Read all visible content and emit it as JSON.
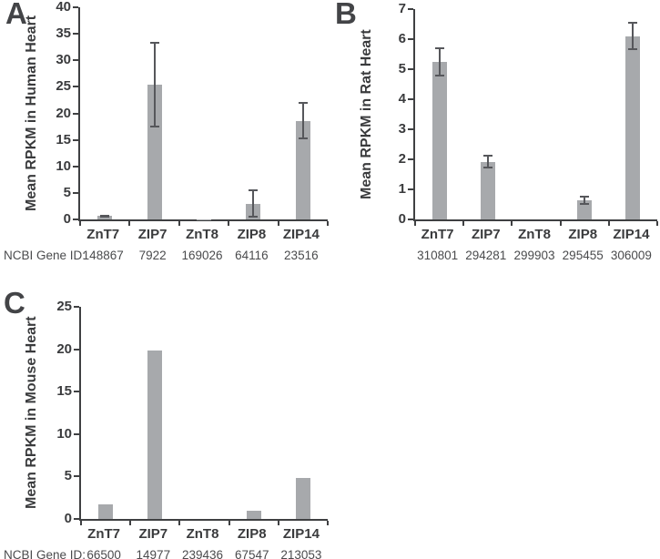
{
  "figure": {
    "bar_color": "#a7a9ac",
    "error_color": "#56575b",
    "axis_color": "#3f4042",
    "text_color": "#3a3b3d"
  },
  "gene_id_prefix": "NCBI Gene ID:",
  "chart_data": [
    {
      "panel": "A",
      "type": "bar",
      "ylabel": "Mean RPKM in Human Heart",
      "xlabel": "",
      "ylim": [
        0,
        40
      ],
      "ytick_step": 5,
      "grid": false,
      "categories": [
        "ZnT7",
        "ZIP7",
        "ZnT8",
        "ZIP8",
        "ZIP14"
      ],
      "values": [
        0.65,
        25.4,
        0.05,
        3.0,
        18.6
      ],
      "errors": [
        0.12,
        8.0,
        0,
        2.6,
        3.5
      ],
      "gene_ids": [
        "148867",
        "7922",
        "169026",
        "64116",
        "23516"
      ],
      "show_gene_prefix": true
    },
    {
      "panel": "B",
      "type": "bar",
      "ylabel": "Mean RPKM in Rat Heart",
      "xlabel": "",
      "ylim": [
        0,
        7
      ],
      "ytick_step": 1,
      "grid": false,
      "categories": [
        "ZnT7",
        "ZIP7",
        "ZnT8",
        "ZIP8",
        "ZIP14"
      ],
      "values": [
        5.25,
        1.92,
        0,
        0.63,
        6.1
      ],
      "errors": [
        0.48,
        0.22,
        0,
        0.15,
        0.47
      ],
      "gene_ids": [
        "310801",
        "294281",
        "299903",
        "295455",
        "306009"
      ],
      "show_gene_prefix": false
    },
    {
      "panel": "C",
      "type": "bar",
      "ylabel": "Mean RPKM in Mouse Heart",
      "xlabel": "",
      "ylim": [
        0,
        25
      ],
      "ytick_step": 5,
      "grid": false,
      "categories": [
        "ZnT7",
        "ZIP7",
        "ZnT8",
        "ZIP8",
        "ZIP14"
      ],
      "values": [
        1.7,
        19.8,
        0,
        0.95,
        4.85
      ],
      "errors": [
        0,
        0,
        0,
        0,
        0
      ],
      "gene_ids": [
        "66500",
        "14977",
        "239436",
        "67547",
        "213053"
      ],
      "show_gene_prefix": true
    }
  ]
}
